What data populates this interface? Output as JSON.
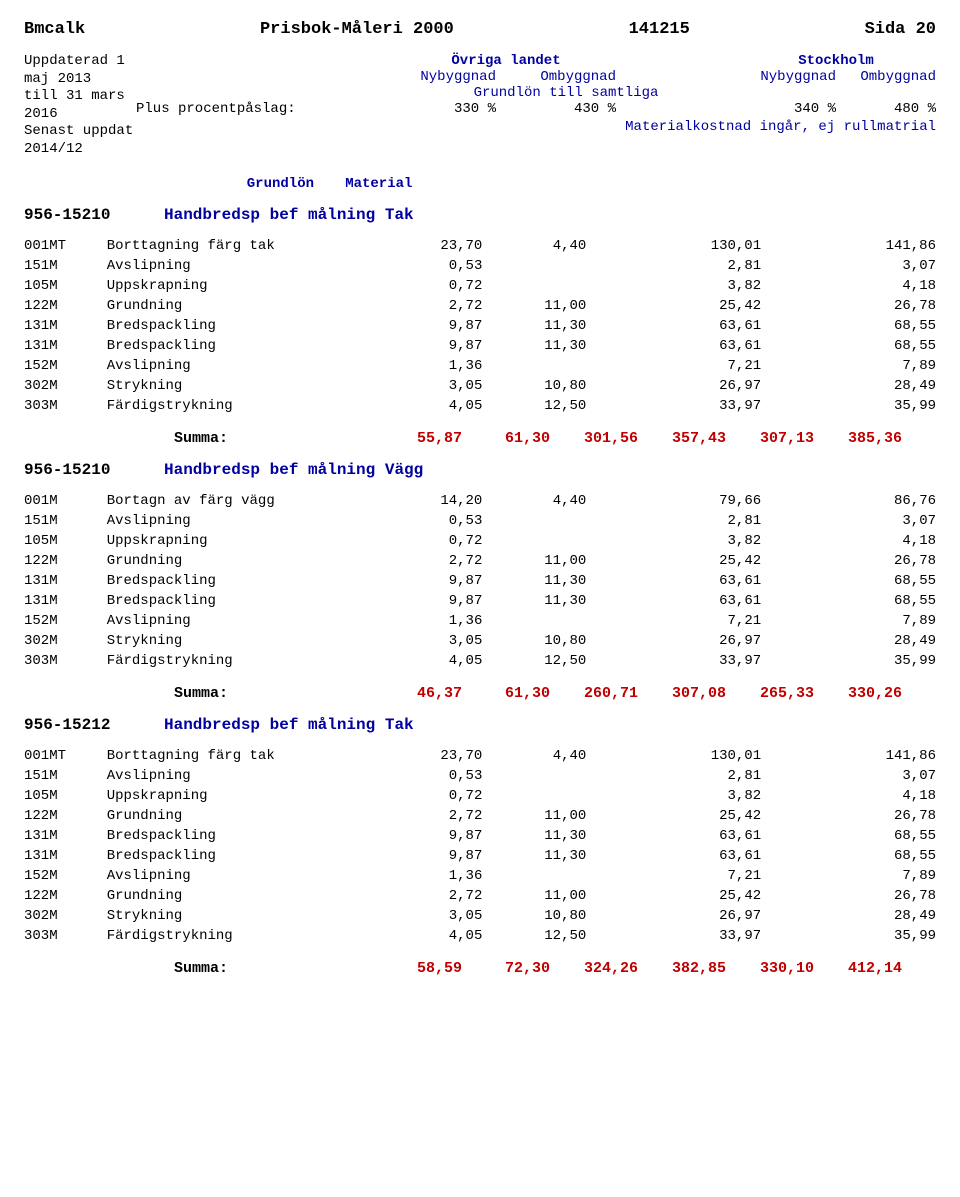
{
  "header": {
    "left": "Bmcalk",
    "center": "Prisbok-Måleri 2000",
    "date": "141215",
    "page_label": "Sida 20"
  },
  "meta": {
    "line1": "Uppdaterad 1 maj 2013",
    "line2": "till 31 mars 2016",
    "line3": "Senast uppdat 2014/12"
  },
  "regions": {
    "ovriga": "Övriga landet",
    "stockholm": "Stockholm",
    "nybyggnad": "Nybyggnad",
    "ombyggnad": "Ombyggnad",
    "grundlon_samtliga": "Grundlön till samtliga",
    "plus_label": "Plus procentpåslag:",
    "pct": [
      "330 %",
      "430 %",
      "340 %",
      "480 %"
    ],
    "material_note": "Materialkostnad ingår, ej rullmatrial"
  },
  "col_heads": {
    "grundlon": "Grundlön",
    "material": "Material"
  },
  "sections": [
    {
      "code": "956-15210",
      "title": "Handbredsp bef målning Tak",
      "rows": [
        {
          "c": "001MT",
          "d": "Borttagning färg tak",
          "v": [
            "23,70",
            "4,40",
            "",
            "130,01",
            "",
            "141,86"
          ]
        },
        {
          "c": "151M",
          "d": "Avslipning",
          "v": [
            "0,53",
            "",
            "",
            "2,81",
            "",
            "3,07"
          ]
        },
        {
          "c": "105M",
          "d": "Uppskrapning",
          "v": [
            "0,72",
            "",
            "",
            "3,82",
            "",
            "4,18"
          ]
        },
        {
          "c": "122M",
          "d": "Grundning",
          "v": [
            "2,72",
            "11,00",
            "",
            "25,42",
            "",
            "26,78"
          ]
        },
        {
          "c": "131M",
          "d": "Bredspackling",
          "v": [
            "9,87",
            "11,30",
            "",
            "63,61",
            "",
            "68,55"
          ]
        },
        {
          "c": "131M",
          "d": "Bredspackling",
          "v": [
            "9,87",
            "11,30",
            "",
            "63,61",
            "",
            "68,55"
          ]
        },
        {
          "c": "152M",
          "d": "Avslipning",
          "v": [
            "1,36",
            "",
            "",
            "7,21",
            "",
            "7,89"
          ]
        },
        {
          "c": "302M",
          "d": "Strykning",
          "v": [
            "3,05",
            "10,80",
            "",
            "26,97",
            "",
            "28,49"
          ]
        },
        {
          "c": "303M",
          "d": "Färdigstrykning",
          "v": [
            "4,05",
            "12,50",
            "",
            "33,97",
            "",
            "35,99"
          ]
        }
      ],
      "summa": [
        "55,87",
        "61,30",
        "301,56",
        "357,43",
        "307,13",
        "385,36"
      ]
    },
    {
      "code": "956-15210",
      "title": "Handbredsp bef målning Vägg",
      "rows": [
        {
          "c": "001M",
          "d": "Bortagn av färg vägg",
          "v": [
            "14,20",
            "4,40",
            "",
            "79,66",
            "",
            "86,76"
          ]
        },
        {
          "c": "151M",
          "d": "Avslipning",
          "v": [
            "0,53",
            "",
            "",
            "2,81",
            "",
            "3,07"
          ]
        },
        {
          "c": "105M",
          "d": "Uppskrapning",
          "v": [
            "0,72",
            "",
            "",
            "3,82",
            "",
            "4,18"
          ]
        },
        {
          "c": "122M",
          "d": "Grundning",
          "v": [
            "2,72",
            "11,00",
            "",
            "25,42",
            "",
            "26,78"
          ]
        },
        {
          "c": "131M",
          "d": "Bredspackling",
          "v": [
            "9,87",
            "11,30",
            "",
            "63,61",
            "",
            "68,55"
          ]
        },
        {
          "c": "131M",
          "d": "Bredspackling",
          "v": [
            "9,87",
            "11,30",
            "",
            "63,61",
            "",
            "68,55"
          ]
        },
        {
          "c": "152M",
          "d": "Avslipning",
          "v": [
            "1,36",
            "",
            "",
            "7,21",
            "",
            "7,89"
          ]
        },
        {
          "c": "302M",
          "d": "Strykning",
          "v": [
            "3,05",
            "10,80",
            "",
            "26,97",
            "",
            "28,49"
          ]
        },
        {
          "c": "303M",
          "d": "Färdigstrykning",
          "v": [
            "4,05",
            "12,50",
            "",
            "33,97",
            "",
            "35,99"
          ]
        }
      ],
      "summa": [
        "46,37",
        "61,30",
        "260,71",
        "307,08",
        "265,33",
        "330,26"
      ]
    },
    {
      "code": "956-15212",
      "title": "Handbredsp bef målning Tak",
      "rows": [
        {
          "c": "001MT",
          "d": "Borttagning färg tak",
          "v": [
            "23,70",
            "4,40",
            "",
            "130,01",
            "",
            "141,86"
          ]
        },
        {
          "c": "151M",
          "d": "Avslipning",
          "v": [
            "0,53",
            "",
            "",
            "2,81",
            "",
            "3,07"
          ]
        },
        {
          "c": "105M",
          "d": "Uppskrapning",
          "v": [
            "0,72",
            "",
            "",
            "3,82",
            "",
            "4,18"
          ]
        },
        {
          "c": "122M",
          "d": "Grundning",
          "v": [
            "2,72",
            "11,00",
            "",
            "25,42",
            "",
            "26,78"
          ]
        },
        {
          "c": "131M",
          "d": "Bredspackling",
          "v": [
            "9,87",
            "11,30",
            "",
            "63,61",
            "",
            "68,55"
          ]
        },
        {
          "c": "131M",
          "d": "Bredspackling",
          "v": [
            "9,87",
            "11,30",
            "",
            "63,61",
            "",
            "68,55"
          ]
        },
        {
          "c": "152M",
          "d": "Avslipning",
          "v": [
            "1,36",
            "",
            "",
            "7,21",
            "",
            "7,89"
          ]
        },
        {
          "c": "122M",
          "d": "Grundning",
          "v": [
            "2,72",
            "11,00",
            "",
            "25,42",
            "",
            "26,78"
          ]
        },
        {
          "c": "302M",
          "d": "Strykning",
          "v": [
            "3,05",
            "10,80",
            "",
            "26,97",
            "",
            "28,49"
          ]
        },
        {
          "c": "303M",
          "d": "Färdigstrykning",
          "v": [
            "4,05",
            "12,50",
            "",
            "33,97",
            "",
            "35,99"
          ]
        }
      ],
      "summa": [
        "58,59",
        "72,30",
        "324,26",
        "382,85",
        "330,10",
        "412,14"
      ]
    }
  ],
  "summa_label": "Summa:",
  "colors": {
    "blue": "#0000a0",
    "red": "#c00000"
  }
}
